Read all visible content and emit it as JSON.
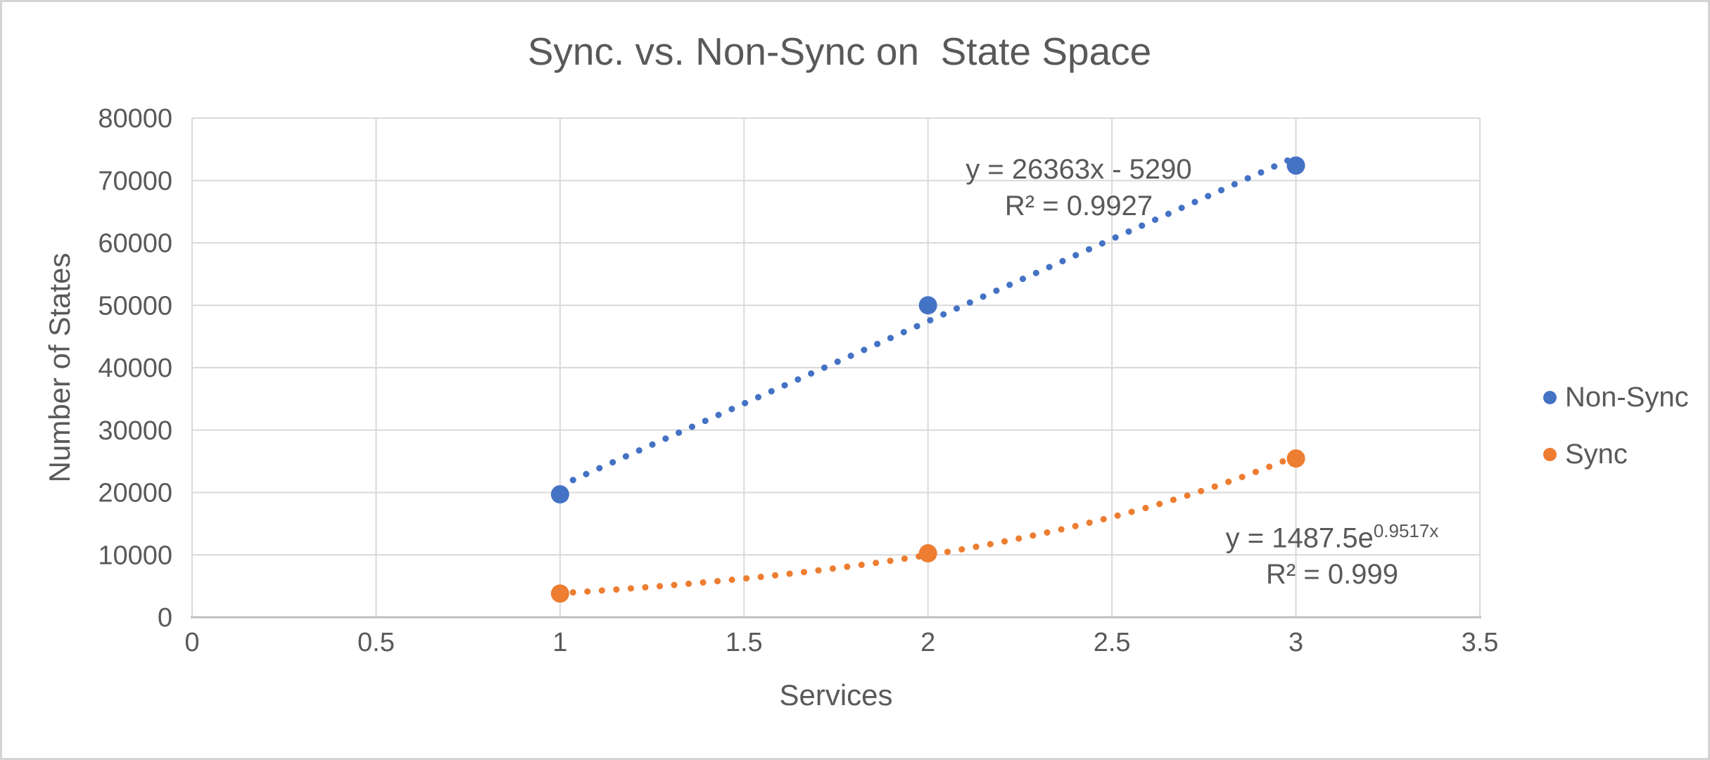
{
  "title": "Sync. vs. Non-Sync on  State Space",
  "chart_data": {
    "type": "scatter",
    "title": "Sync. vs. Non-Sync on  State Space",
    "xlabel": "Services",
    "ylabel": "Number of States",
    "xlim": [
      0,
      3.5
    ],
    "ylim": [
      0,
      80000
    ],
    "x_tick_labels": [
      "0",
      "0.5",
      "1",
      "1.5",
      "2",
      "2.5",
      "3",
      "3.5"
    ],
    "y_tick_labels": [
      "0",
      "10000",
      "20000",
      "30000",
      "40000",
      "50000",
      "60000",
      "70000",
      "80000"
    ],
    "grid": true,
    "legend_position": "right",
    "x": [
      1,
      2,
      3
    ],
    "series": [
      {
        "name": "Non-Sync",
        "color": "#4472C4",
        "values": [
          19700,
          50000,
          72400
        ],
        "trendline": {
          "type": "linear",
          "style": "dotted",
          "slope": 26363,
          "intercept": -5290,
          "r_squared": 0.9927,
          "label_line1": "y = 26363x - 5290",
          "label_line2": "R² = 0.9927"
        }
      },
      {
        "name": "Sync",
        "color": "#ED7D31",
        "values": [
          3800,
          10250,
          25450
        ],
        "trendline": {
          "type": "exponential",
          "style": "dotted",
          "coefficient": 1487.5,
          "exponent": 0.9517,
          "r_squared": 0.999,
          "label_base": "y = 1487.5e",
          "label_sup": "0.9517x",
          "label_line2": "R² = 0.999"
        }
      }
    ]
  },
  "colors": {
    "text": "#595959",
    "gridline": "#D9D9D9",
    "axis_line": "#BFBFBF",
    "frame_border": "#D4D4D4",
    "background": "#FFFFFF"
  }
}
